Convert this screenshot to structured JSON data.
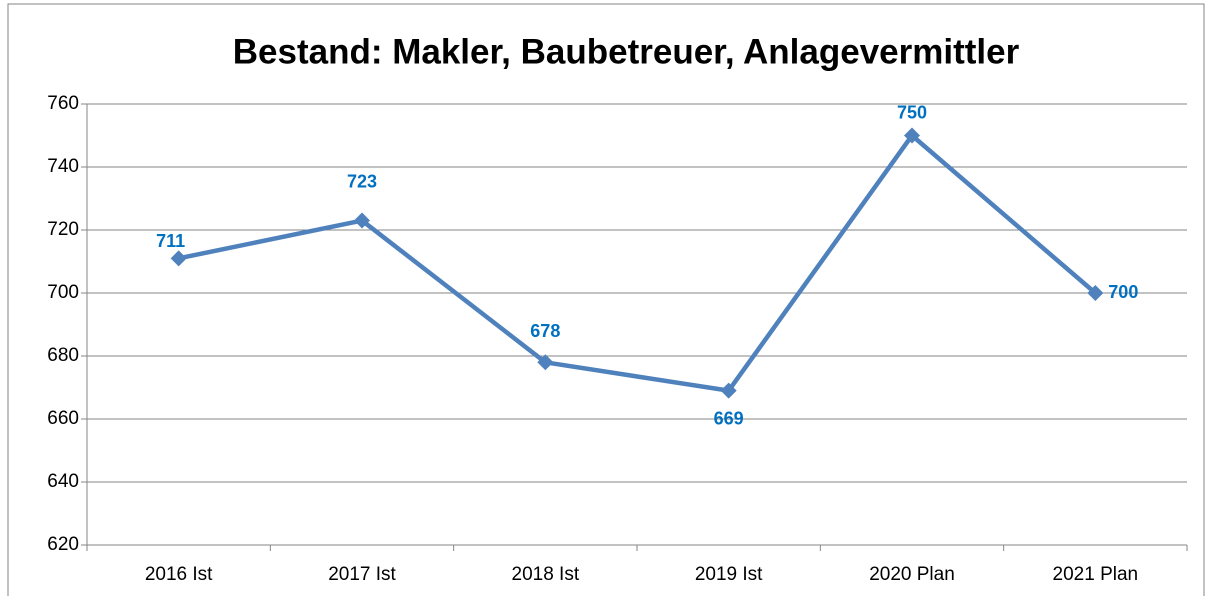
{
  "chart_data": {
    "type": "line",
    "title": "Bestand: Makler, Baubetreuer, Anlagevermittler",
    "categories": [
      "2016 Ist",
      "2017 Ist",
      "2018 Ist",
      "2019 Ist",
      "2020 Plan",
      "2021 Plan"
    ],
    "series": [
      {
        "name": "Bestand",
        "color": "#4f81bd",
        "values": [
          711,
          723,
          678,
          669,
          750,
          700
        ]
      }
    ],
    "ylim": [
      620,
      760
    ],
    "yticks": [
      620,
      640,
      660,
      680,
      700,
      720,
      740,
      760
    ],
    "grid": true,
    "label_color": "#0070c0"
  }
}
